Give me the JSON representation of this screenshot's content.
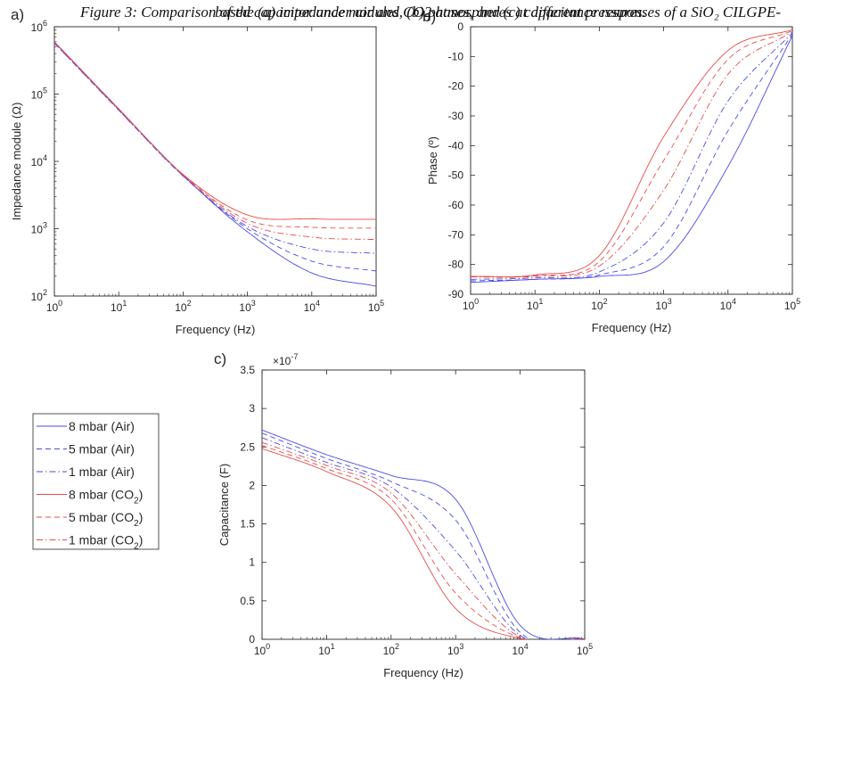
{
  "chart_data": [
    {
      "panel_label": "a)",
      "type": "line",
      "xlabel": "Frequency (Hz)",
      "ylabel": "Impedance module (Ω)",
      "xscale": "log",
      "yscale": "log",
      "xlim": [
        1,
        100000
      ],
      "ylim": [
        100,
        1000000
      ],
      "grid": false,
      "xtick_labels": [
        {
          "base": "10",
          "exp": "0"
        },
        {
          "base": "10",
          "exp": "1"
        },
        {
          "base": "10",
          "exp": "2"
        },
        {
          "base": "10",
          "exp": "3"
        },
        {
          "base": "10",
          "exp": "4"
        },
        {
          "base": "10",
          "exp": "5"
        }
      ],
      "ytick_labels": [
        {
          "base": "10",
          "exp": "2"
        },
        {
          "base": "10",
          "exp": "3"
        },
        {
          "base": "10",
          "exp": "4"
        },
        {
          "base": "10",
          "exp": "5"
        },
        {
          "base": "10",
          "exp": "6"
        }
      ],
      "x": [
        1,
        10,
        100,
        1000,
        10000,
        100000
      ],
      "series": [
        {
          "name": "8 mbar (Air)",
          "values": [
            590000,
            59500,
            6200,
            900,
            220,
            140
          ]
        },
        {
          "name": "5 mbar (Air)",
          "values": [
            575000,
            58000,
            6100,
            1000,
            330,
            235
          ]
        },
        {
          "name": "1 mbar (Air)",
          "values": [
            570000,
            57500,
            6050,
            1080,
            500,
            430
          ]
        },
        {
          "name": "8 mbar (CO2)",
          "values": [
            600000,
            60500,
            6400,
            1600,
            1400,
            1380
          ]
        },
        {
          "name": "5 mbar (CO2)",
          "values": [
            595000,
            60000,
            6300,
            1350,
            1050,
            1020
          ]
        },
        {
          "name": "1 mbar (CO2)",
          "values": [
            590000,
            59500,
            6250,
            1200,
            750,
            690
          ]
        }
      ]
    },
    {
      "panel_label": "b)",
      "type": "line",
      "xlabel": "Frequency (Hz)",
      "ylabel": "Phase (º)",
      "xscale": "log",
      "xlim": [
        1,
        100000
      ],
      "ylim": [
        -90,
        0
      ],
      "grid": false,
      "xtick_labels": [
        {
          "base": "10",
          "exp": "0"
        },
        {
          "base": "10",
          "exp": "1"
        },
        {
          "base": "10",
          "exp": "2"
        },
        {
          "base": "10",
          "exp": "3"
        },
        {
          "base": "10",
          "exp": "4"
        },
        {
          "base": "10",
          "exp": "5"
        }
      ],
      "ytick_labels": [
        "0",
        "-10",
        "-20",
        "-30",
        "-40",
        "-50",
        "-60",
        "-70",
        "-80",
        "-90"
      ],
      "x": [
        1,
        10,
        100,
        1000,
        10000,
        100000
      ],
      "series": [
        {
          "name": "8 mbar (Air)",
          "values": [
            -86,
            -85,
            -84,
            -79,
            -47,
            -3
          ]
        },
        {
          "name": "5 mbar (Air)",
          "values": [
            -85.5,
            -85,
            -83.5,
            -74,
            -35,
            -2.5
          ]
        },
        {
          "name": "1 mbar (Air)",
          "values": [
            -85,
            -84.5,
            -82.5,
            -66,
            -25,
            -2
          ]
        },
        {
          "name": "8 mbar (CO2)",
          "values": [
            -84,
            -83.5,
            -77,
            -37,
            -8,
            -1
          ]
        },
        {
          "name": "5 mbar (CO2)",
          "values": [
            -84,
            -83.8,
            -79,
            -45,
            -11,
            -1.3
          ]
        },
        {
          "name": "1 mbar (CO2)",
          "values": [
            -84.2,
            -84,
            -80.5,
            -55,
            -16,
            -1.6
          ]
        }
      ]
    },
    {
      "panel_label": "c)",
      "type": "line",
      "xlabel": "Frequency (Hz)",
      "ylabel": "Capacitance (F)",
      "xscale": "log",
      "xlim": [
        1,
        100000
      ],
      "ylim": [
        0,
        3.5
      ],
      "y_multiplier": "×10-7",
      "grid": false,
      "xtick_labels": [
        {
          "base": "10",
          "exp": "0"
        },
        {
          "base": "10",
          "exp": "1"
        },
        {
          "base": "10",
          "exp": "2"
        },
        {
          "base": "10",
          "exp": "3"
        },
        {
          "base": "10",
          "exp": "4"
        },
        {
          "base": "10",
          "exp": "5"
        }
      ],
      "ytick_labels": [
        "0",
        "0.5",
        "1",
        "1.5",
        "2",
        "2.5",
        "3",
        "3.5"
      ],
      "x": [
        1,
        10,
        100,
        1000,
        10000,
        100000
      ],
      "series": [
        {
          "name": "8 mbar (Air)",
          "values": [
            2.72,
            2.4,
            2.13,
            1.82,
            0.18,
            0.005
          ]
        },
        {
          "name": "5 mbar (Air)",
          "values": [
            2.68,
            2.35,
            2.05,
            1.55,
            0.09,
            0.004
          ]
        },
        {
          "name": "1 mbar (Air)",
          "values": [
            2.62,
            2.3,
            1.98,
            1.15,
            0.05,
            0.003
          ]
        },
        {
          "name": "8 mbar (CO2)",
          "values": [
            2.48,
            2.18,
            1.72,
            0.4,
            0.01,
            0.002
          ]
        },
        {
          "name": "5 mbar (CO2)",
          "values": [
            2.52,
            2.22,
            1.82,
            0.6,
            0.02,
            0.002
          ]
        },
        {
          "name": "1 mbar (CO2)",
          "values": [
            2.56,
            2.26,
            1.9,
            0.85,
            0.03,
            0.003
          ]
        }
      ]
    }
  ],
  "legend": {
    "entries": [
      {
        "label": "8 mbar (Air)",
        "color": "#4a4ae6",
        "dash": "solid"
      },
      {
        "label": "5 mbar (Air)",
        "color": "#4a4ae6",
        "dash": "dashed"
      },
      {
        "label": "1 mbar (Air)",
        "color": "#4a4ae6",
        "dash": "dashdot"
      },
      {
        "label": "8 mbar (CO",
        "sub": "2",
        "tail": ")",
        "color": "#e84a4a",
        "dash": "solid"
      },
      {
        "label": "5 mbar (CO",
        "sub": "2",
        "tail": ")",
        "color": "#e84a4a",
        "dash": "dashed"
      },
      {
        "label": "1 mbar (CO",
        "sub": "2",
        "tail": ")",
        "color": "#e84a4a",
        "dash": "dashdot"
      }
    ]
  },
  "caption": {
    "line1": "Figure 3: Comparison of the (a) impedance modules, (b) phases, and (c) capacitance responses of a SiO₂ CILGPE-",
    "line2": "based capacitor under air and CO2 atmospheres at different pressures."
  }
}
